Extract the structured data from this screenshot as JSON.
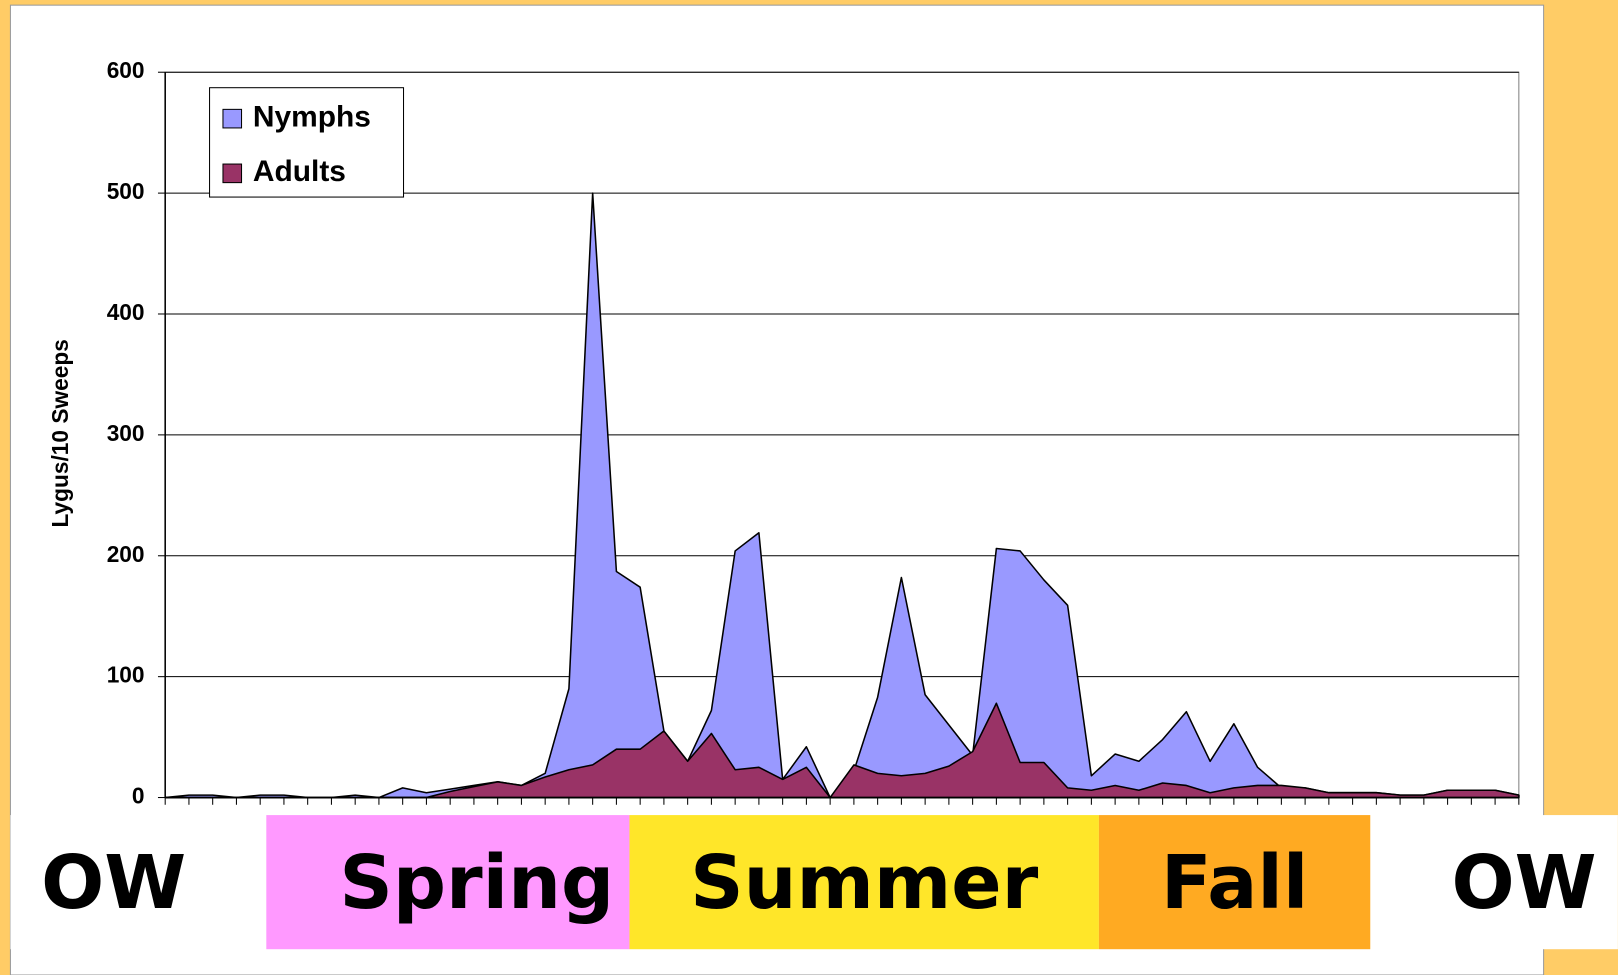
{
  "chart_data": {
    "type": "area",
    "y_label": "Lygus/10 Sweeps",
    "categories": [
      null,
      null,
      null,
      null,
      null,
      null,
      null,
      null,
      null,
      null,
      null,
      null,
      null,
      null,
      null,
      null,
      null,
      null,
      null,
      null,
      null,
      null,
      null,
      null,
      null,
      null,
      null,
      null,
      null,
      null,
      null,
      null,
      null,
      null,
      null,
      null,
      null,
      null,
      null,
      null,
      null,
      null,
      null,
      null,
      null,
      null,
      null,
      null,
      null,
      null,
      null,
      null,
      null,
      null,
      null,
      null,
      null,
      null
    ],
    "series": [
      {
        "name": "Nymphs",
        "color": "#9999FF",
        "values": [
          0,
          2,
          2,
          0,
          2,
          2,
          0,
          0,
          2,
          0,
          8,
          4,
          7,
          10,
          13,
          10,
          20,
          90,
          500,
          187,
          174,
          55,
          30,
          72,
          204,
          219,
          15,
          42,
          0,
          22,
          83,
          182,
          85,
          60,
          35,
          206,
          204,
          180,
          159,
          18,
          36,
          30,
          48,
          71,
          30,
          61,
          25,
          8,
          8,
          4,
          4,
          4,
          2,
          2,
          6,
          6,
          6,
          2
        ]
      },
      {
        "name": "Adults",
        "color": "#993366",
        "values": [
          0,
          0,
          0,
          0,
          0,
          0,
          0,
          0,
          0,
          0,
          0,
          0,
          5,
          9,
          13,
          10,
          17,
          23,
          27,
          40,
          40,
          55,
          30,
          53,
          23,
          25,
          15,
          25,
          0,
          27,
          20,
          18,
          20,
          26,
          38,
          78,
          29,
          29,
          8,
          6,
          10,
          6,
          12,
          10,
          4,
          8,
          10,
          10,
          8,
          4,
          4,
          4,
          2,
          2,
          6,
          6,
          6,
          2
        ]
      }
    ],
    "ylim": [
      0,
      600
    ],
    "yticks": [
      0,
      100,
      200,
      300,
      400,
      500,
      600
    ],
    "grid": true,
    "legend": "upper left",
    "seasons": [
      {
        "label": "OW",
        "color": "#FFFFFF"
      },
      {
        "label": "Spring",
        "color": "#FF99FF"
      },
      {
        "label": "Summer",
        "color": "#FFE629"
      },
      {
        "label": "Fall",
        "color": "#FFAA22"
      },
      {
        "label": "OW",
        "color": "#FFFFFF"
      }
    ]
  }
}
